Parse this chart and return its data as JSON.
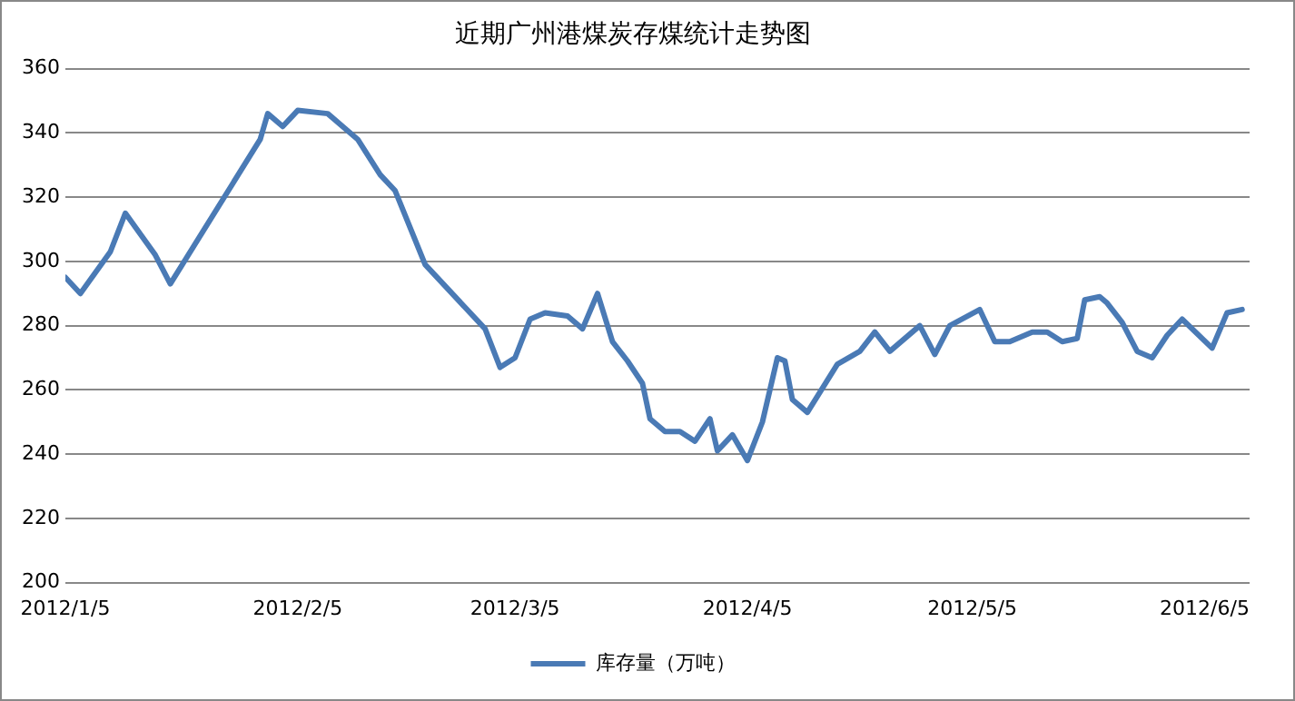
{
  "chart_data": {
    "type": "line",
    "title": "近期广州港煤炭存煤统计走势图",
    "x": [
      "2012-01-05",
      "2012-01-07",
      "2012-01-11",
      "2012-01-13",
      "2012-01-17",
      "2012-01-19",
      "2012-01-31",
      "2012-02-01",
      "2012-02-03",
      "2012-02-05",
      "2012-02-09",
      "2012-02-13",
      "2012-02-16",
      "2012-02-18",
      "2012-02-22",
      "2012-03-01",
      "2012-03-03",
      "2012-03-05",
      "2012-03-07",
      "2012-03-09",
      "2012-03-12",
      "2012-03-14",
      "2012-03-16",
      "2012-03-18",
      "2012-03-20",
      "2012-03-22",
      "2012-03-23",
      "2012-03-25",
      "2012-03-27",
      "2012-03-29",
      "2012-03-31",
      "2012-04-01",
      "2012-04-03",
      "2012-04-05",
      "2012-04-07",
      "2012-04-09",
      "2012-04-10",
      "2012-04-11",
      "2012-04-13",
      "2012-04-17",
      "2012-04-20",
      "2012-04-22",
      "2012-04-24",
      "2012-04-28",
      "2012-04-30",
      "2012-05-02",
      "2012-05-06",
      "2012-05-08",
      "2012-05-10",
      "2012-05-13",
      "2012-05-15",
      "2012-05-17",
      "2012-05-19",
      "2012-05-20",
      "2012-05-22",
      "2012-05-23",
      "2012-05-25",
      "2012-05-27",
      "2012-05-29",
      "2012-05-31",
      "2012-06-02",
      "2012-06-06",
      "2012-06-08",
      "2012-06-10"
    ],
    "series": [
      {
        "name": "库存量（万吨）",
        "color": "#4a7ab5",
        "values": [
          295,
          290,
          303,
          315,
          302,
          293,
          338,
          346,
          342,
          347,
          346,
          338,
          327,
          322,
          299,
          279,
          267,
          270,
          282,
          284,
          283,
          279,
          290,
          275,
          269,
          262,
          251,
          247,
          247,
          244,
          251,
          241,
          246,
          238,
          250,
          270,
          269,
          257,
          253,
          268,
          272,
          278,
          272,
          280,
          271,
          280,
          285,
          275,
          275,
          278,
          278,
          275,
          276,
          288,
          289,
          287,
          281,
          272,
          270,
          277,
          282,
          273,
          284,
          285
        ]
      }
    ],
    "xlim": [
      "2012-01-05",
      "2012-06-11"
    ],
    "xticks": [
      {
        "value": "2012-01-05",
        "label": "2012/1/5"
      },
      {
        "value": "2012-02-05",
        "label": "2012/2/5"
      },
      {
        "value": "2012-03-05",
        "label": "2012/3/5"
      },
      {
        "value": "2012-04-05",
        "label": "2012/4/5"
      },
      {
        "value": "2012-05-05",
        "label": "2012/5/5"
      },
      {
        "value": "2012-06-05",
        "label": "2012/6/5"
      }
    ],
    "ylim": [
      200,
      360
    ],
    "yticks": [
      200,
      220,
      240,
      260,
      280,
      300,
      320,
      340,
      360
    ],
    "grid": "y",
    "legend": "bottom",
    "marker": "none",
    "line_style": "solid"
  }
}
